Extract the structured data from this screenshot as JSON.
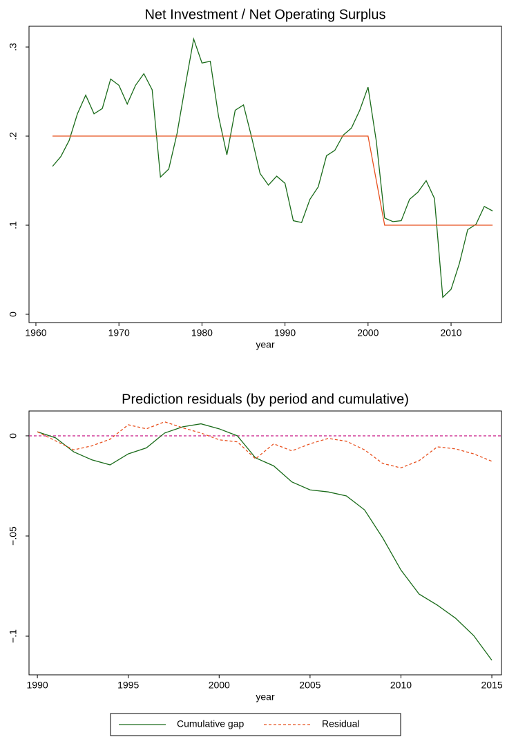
{
  "chart_data": [
    {
      "type": "line",
      "title": "Net Investment / Net Operating Surplus",
      "xlabel": "year",
      "x": [
        1962,
        1963,
        1964,
        1965,
        1966,
        1967,
        1968,
        1969,
        1970,
        1971,
        1972,
        1973,
        1974,
        1975,
        1976,
        1977,
        1978,
        1979,
        1980,
        1981,
        1982,
        1983,
        1984,
        1985,
        1986,
        1987,
        1988,
        1989,
        1990,
        1991,
        1992,
        1993,
        1994,
        1995,
        1996,
        1997,
        1998,
        1999,
        2000,
        2001,
        2002,
        2003,
        2004,
        2005,
        2006,
        2007,
        2008,
        2009,
        2010,
        2011,
        2012,
        2013,
        2014,
        2015
      ],
      "series": [
        {
          "color": "#1a6b1a",
          "values": [
            0.166,
            0.177,
            0.195,
            0.225,
            0.246,
            0.225,
            0.231,
            0.264,
            0.257,
            0.236,
            0.257,
            0.27,
            0.252,
            0.154,
            0.163,
            0.203,
            0.257,
            0.309,
            0.282,
            0.284,
            0.222,
            0.179,
            0.229,
            0.235,
            0.198,
            0.158,
            0.145,
            0.155,
            0.147,
            0.105,
            0.103,
            0.129,
            0.143,
            0.178,
            0.184,
            0.201,
            0.209,
            0.229,
            0.255,
            0.194,
            0.108,
            0.104,
            0.105,
            0.129,
            0.137,
            0.15,
            0.13,
            0.019,
            0.028,
            0.057,
            0.095,
            0.101,
            0.121,
            0.116
          ]
        },
        {
          "color": "#e8501e",
          "x": [
            1962,
            2000,
            2002,
            2015
          ],
          "values": [
            0.2,
            0.2,
            0.1,
            0.1
          ]
        }
      ],
      "xlim": [
        1959.17,
        2016.07
      ],
      "ylim": [
        -0.0093,
        0.3233
      ],
      "xticks": [
        1960,
        1970,
        1980,
        1990,
        2000,
        2010
      ],
      "yticks": [
        0,
        {
          "value": 0.1,
          "label": ".1"
        },
        {
          "value": 0.2,
          "label": ".2"
        },
        {
          "value": 0.3,
          "label": ".3"
        }
      ]
    },
    {
      "type": "line",
      "title": "Prediction residuals (by period and cumulative)",
      "xlabel": "year",
      "x": [
        1990,
        1991,
        1992,
        1993,
        1994,
        1995,
        1996,
        1997,
        1998,
        1999,
        2000,
        2001,
        2002,
        2003,
        2004,
        2005,
        2006,
        2007,
        2008,
        2009,
        2010,
        2011,
        2012,
        2013,
        2014,
        2015
      ],
      "series": [
        {
          "name": "Cumulative gap",
          "color": "#1a6b1a",
          "dash": false,
          "values": [
            0.002,
            -0.001,
            -0.008,
            -0.012,
            -0.0145,
            -0.009,
            -0.006,
            0.0014,
            0.0045,
            0.006,
            0.0035,
            0,
            -0.011,
            -0.015,
            -0.023,
            -0.027,
            -0.028,
            -0.03,
            -0.037,
            -0.051,
            -0.067,
            -0.079,
            -0.0845,
            -0.091,
            -0.0997,
            -0.112
          ]
        },
        {
          "name": "Residual",
          "color": "#e8501e",
          "dash": true,
          "values": [
            0.002,
            -0.0025,
            -0.007,
            -0.005,
            -0.0017,
            0.0055,
            0.0035,
            0.007,
            0.004,
            0.0014,
            -0.002,
            -0.003,
            -0.0115,
            -0.004,
            -0.0075,
            -0.004,
            -0.0013,
            -0.0027,
            -0.007,
            -0.0138,
            -0.016,
            -0.0124,
            -0.0055,
            -0.0065,
            -0.009,
            -0.0127
          ]
        }
      ],
      "refline": {
        "value": 0,
        "color": "#c71585"
      },
      "xlim": [
        1989.54,
        2015.53
      ],
      "ylim": [
        -0.1193,
        0.0124
      ],
      "xticks": [
        1990,
        1995,
        2000,
        2005,
        2010,
        2015
      ],
      "yticks": [
        0,
        {
          "value": -0.05,
          "label": "−.05"
        },
        {
          "value": -0.1,
          "label": "−.1"
        }
      ],
      "legend": "bottom"
    }
  ]
}
